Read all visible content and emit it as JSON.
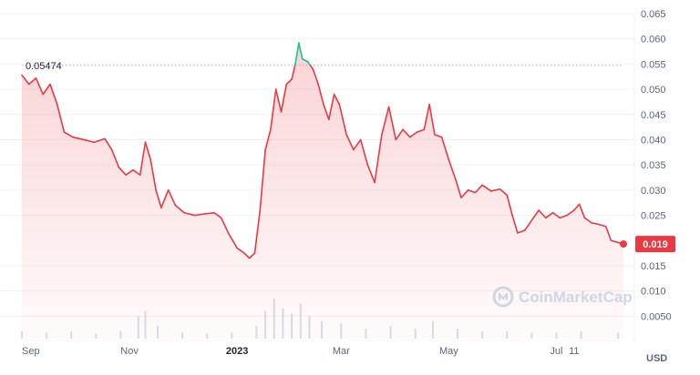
{
  "chart_data": {
    "type": "area",
    "currency": "USD",
    "watermark": "CoinMarketCap",
    "reference_value_label": "0.05474",
    "reference_value": 0.05474,
    "current_value_label": "0.019",
    "current_value": 0.0193,
    "y_ticks": [
      "0.065",
      "0.060",
      "0.055",
      "0.050",
      "0.045",
      "0.040",
      "0.035",
      "0.030",
      "0.025",
      "0.019",
      "0.015",
      "0.010",
      "0.0050"
    ],
    "ylim": [
      0,
      0.065
    ],
    "x_ticks": [
      {
        "label": "Sep",
        "date": "2022-09-01",
        "bold": false
      },
      {
        "label": "Nov",
        "date": "2022-11-01",
        "bold": false
      },
      {
        "label": "2023",
        "date": "2023-01-01",
        "bold": true
      },
      {
        "label": "Mar",
        "date": "2023-03-01",
        "bold": false
      },
      {
        "label": "May",
        "date": "2023-05-01",
        "bold": false
      },
      {
        "label": "Jul",
        "date": "2023-07-01",
        "bold": false
      },
      {
        "label": "11",
        "date": "2023-07-11",
        "bold": false
      }
    ],
    "xlim": [
      "2022-09-01",
      "2023-08-08"
    ],
    "colors": {
      "up": "#16c784",
      "down": "#ea3943",
      "grid": "#eff2f5",
      "reference_line": "#a6b0c3"
    },
    "series": [
      {
        "values": [
          [
            "2022-09-01",
            0.0528
          ],
          [
            "2022-09-05",
            0.051
          ],
          [
            "2022-09-09",
            0.0522
          ],
          [
            "2022-09-13",
            0.049
          ],
          [
            "2022-09-17",
            0.051
          ],
          [
            "2022-09-21",
            0.047
          ],
          [
            "2022-09-25",
            0.0415
          ],
          [
            "2022-09-30",
            0.0405
          ],
          [
            "2022-10-06",
            0.04
          ],
          [
            "2022-10-12",
            0.0395
          ],
          [
            "2022-10-18",
            0.0402
          ],
          [
            "2022-10-22",
            0.038
          ],
          [
            "2022-10-26",
            0.0345
          ],
          [
            "2022-10-30",
            0.033
          ],
          [
            "2022-11-03",
            0.034
          ],
          [
            "2022-11-07",
            0.033
          ],
          [
            "2022-11-10",
            0.0395
          ],
          [
            "2022-11-13",
            0.036
          ],
          [
            "2022-11-16",
            0.03
          ],
          [
            "2022-11-19",
            0.0265
          ],
          [
            "2022-11-23",
            0.03
          ],
          [
            "2022-11-27",
            0.027
          ],
          [
            "2022-12-02",
            0.0255
          ],
          [
            "2022-12-08",
            0.025
          ],
          [
            "2022-12-14",
            0.0253
          ],
          [
            "2022-12-19",
            0.0255
          ],
          [
            "2022-12-23",
            0.0245
          ],
          [
            "2022-12-27",
            0.0215
          ],
          [
            "2023-01-01",
            0.0185
          ],
          [
            "2023-01-05",
            0.0175
          ],
          [
            "2023-01-08",
            0.0165
          ],
          [
            "2023-01-11",
            0.0175
          ],
          [
            "2023-01-14",
            0.026
          ],
          [
            "2023-01-17",
            0.038
          ],
          [
            "2023-01-20",
            0.042
          ],
          [
            "2023-01-23",
            0.05
          ],
          [
            "2023-01-26",
            0.0455
          ],
          [
            "2023-01-29",
            0.051
          ],
          [
            "2023-02-01",
            0.052
          ],
          [
            "2023-02-03",
            0.055
          ],
          [
            "2023-02-05",
            0.0592
          ],
          [
            "2023-02-07",
            0.056
          ],
          [
            "2023-02-10",
            0.0555
          ],
          [
            "2023-02-13",
            0.054
          ],
          [
            "2023-02-16",
            0.051
          ],
          [
            "2023-02-19",
            0.047
          ],
          [
            "2023-02-22",
            0.044
          ],
          [
            "2023-02-25",
            0.049
          ],
          [
            "2023-02-28",
            0.047
          ],
          [
            "2023-03-04",
            0.041
          ],
          [
            "2023-03-08",
            0.038
          ],
          [
            "2023-03-12",
            0.04
          ],
          [
            "2023-03-16",
            0.035
          ],
          [
            "2023-03-20",
            0.0315
          ],
          [
            "2023-03-24",
            0.041
          ],
          [
            "2023-03-28",
            0.0465
          ],
          [
            "2023-04-01",
            0.04
          ],
          [
            "2023-04-05",
            0.042
          ],
          [
            "2023-04-09",
            0.0405
          ],
          [
            "2023-04-13",
            0.0415
          ],
          [
            "2023-04-17",
            0.042
          ],
          [
            "2023-04-20",
            0.047
          ],
          [
            "2023-04-23",
            0.041
          ],
          [
            "2023-04-27",
            0.0405
          ],
          [
            "2023-05-01",
            0.036
          ],
          [
            "2023-05-05",
            0.032
          ],
          [
            "2023-05-08",
            0.0285
          ],
          [
            "2023-05-12",
            0.03
          ],
          [
            "2023-05-16",
            0.0295
          ],
          [
            "2023-05-20",
            0.031
          ],
          [
            "2023-05-25",
            0.0298
          ],
          [
            "2023-05-30",
            0.0302
          ],
          [
            "2023-06-03",
            0.029
          ],
          [
            "2023-06-06",
            0.025
          ],
          [
            "2023-06-09",
            0.0215
          ],
          [
            "2023-06-13",
            0.022
          ],
          [
            "2023-06-17",
            0.024
          ],
          [
            "2023-06-21",
            0.026
          ],
          [
            "2023-06-25",
            0.0245
          ],
          [
            "2023-06-29",
            0.0255
          ],
          [
            "2023-07-03",
            0.0245
          ],
          [
            "2023-07-07",
            0.025
          ],
          [
            "2023-07-11",
            0.026
          ],
          [
            "2023-07-14",
            0.0272
          ],
          [
            "2023-07-17",
            0.0245
          ],
          [
            "2023-07-21",
            0.0235
          ],
          [
            "2023-07-25",
            0.0232
          ],
          [
            "2023-07-29",
            0.0228
          ],
          [
            "2023-08-01",
            0.02
          ],
          [
            "2023-08-05",
            0.0196
          ],
          [
            "2023-08-08",
            0.0193
          ]
        ]
      }
    ],
    "volume": [
      [
        "2022-09-01",
        0.15
      ],
      [
        "2022-09-15",
        0.12
      ],
      [
        "2022-09-29",
        0.14
      ],
      [
        "2022-10-13",
        0.1
      ],
      [
        "2022-10-27",
        0.15
      ],
      [
        "2022-11-06",
        0.45
      ],
      [
        "2022-11-10",
        0.55
      ],
      [
        "2022-11-17",
        0.25
      ],
      [
        "2022-12-01",
        0.12
      ],
      [
        "2022-12-15",
        0.1
      ],
      [
        "2022-12-29",
        0.12
      ],
      [
        "2023-01-12",
        0.25
      ],
      [
        "2023-01-17",
        0.55
      ],
      [
        "2023-01-22",
        0.8
      ],
      [
        "2023-01-27",
        0.6
      ],
      [
        "2023-02-01",
        0.5
      ],
      [
        "2023-02-06",
        0.7
      ],
      [
        "2023-02-11",
        0.45
      ],
      [
        "2023-02-18",
        0.35
      ],
      [
        "2023-03-01",
        0.3
      ],
      [
        "2023-03-15",
        0.2
      ],
      [
        "2023-03-29",
        0.25
      ],
      [
        "2023-04-12",
        0.2
      ],
      [
        "2023-04-22",
        0.35
      ],
      [
        "2023-05-06",
        0.2
      ],
      [
        "2023-05-20",
        0.15
      ],
      [
        "2023-06-03",
        0.14
      ],
      [
        "2023-06-17",
        0.12
      ],
      [
        "2023-07-01",
        0.12
      ],
      [
        "2023-07-15",
        0.15
      ],
      [
        "2023-08-05",
        0.12
      ]
    ]
  }
}
